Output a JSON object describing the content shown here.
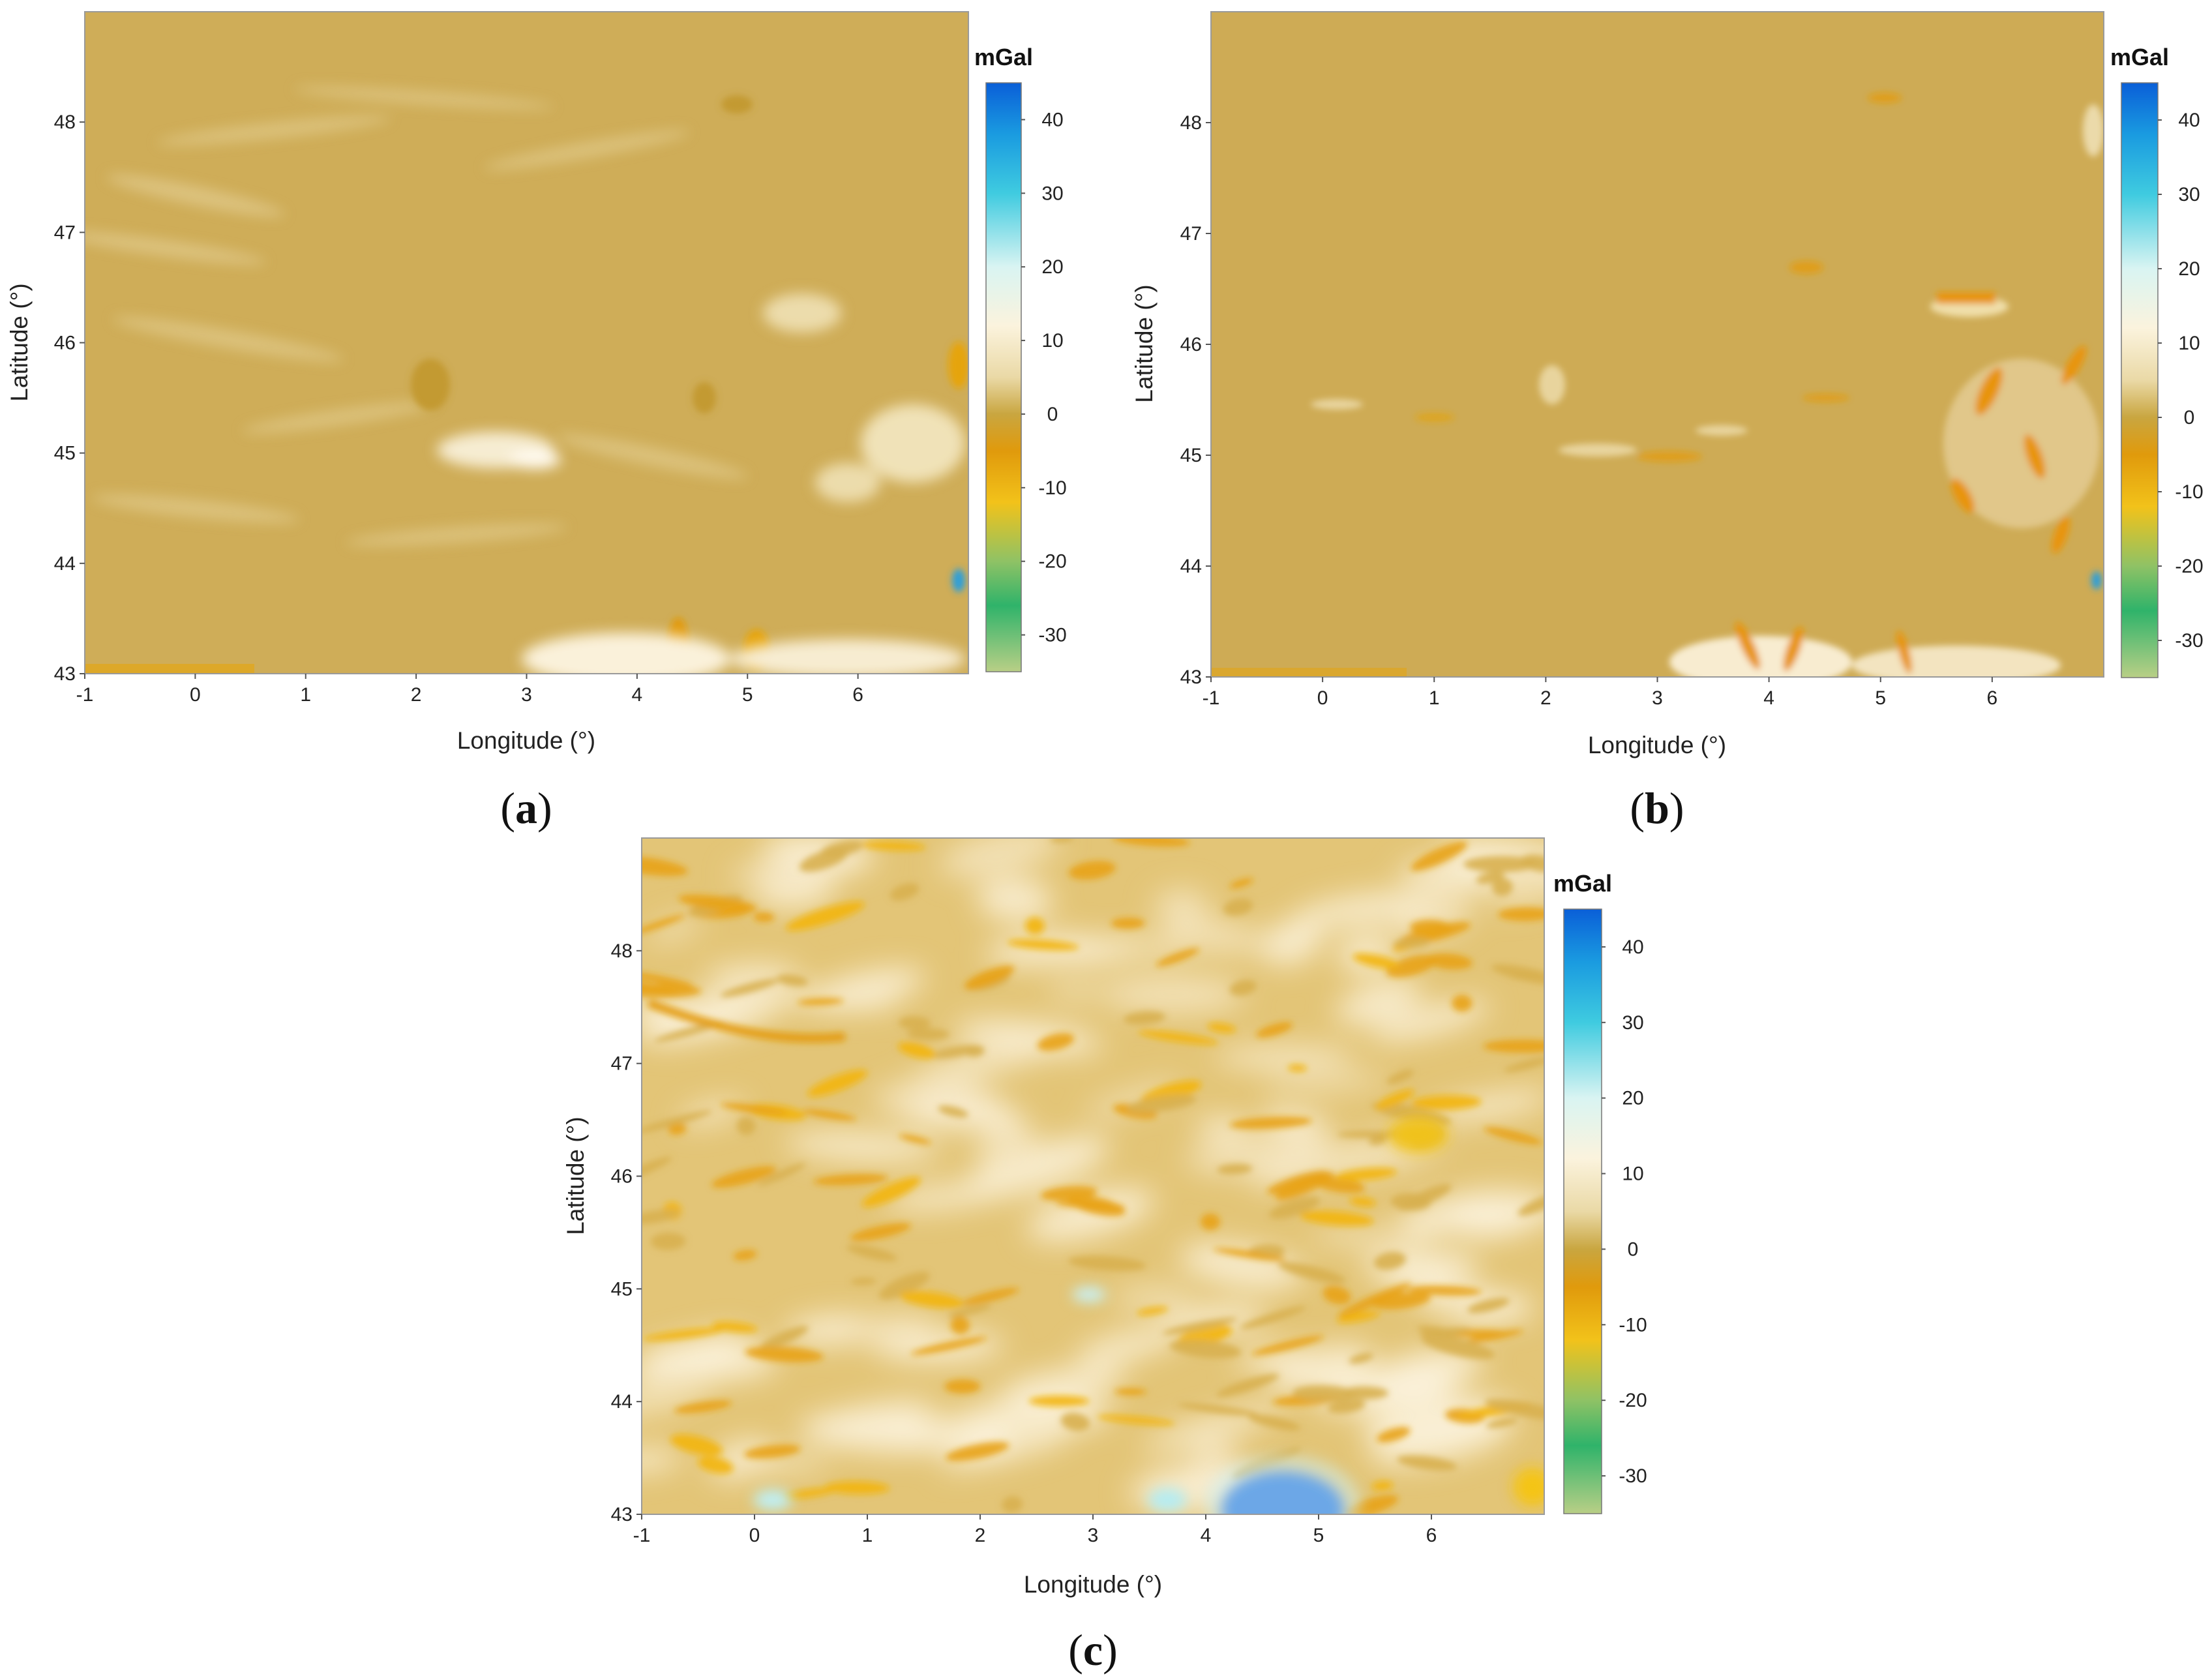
{
  "colorbar": {
    "unit": "mGal",
    "range": [
      -35,
      45
    ],
    "ticks": [
      40,
      30,
      20,
      10,
      0,
      -10,
      -20,
      -30
    ],
    "stops": [
      {
        "value": 45,
        "color": "#0a5fd8"
      },
      {
        "value": 38,
        "color": "#1a9be0"
      },
      {
        "value": 30,
        "color": "#3fcbe0"
      },
      {
        "value": 20,
        "color": "#d9f4f2"
      },
      {
        "value": 12,
        "color": "#fbf3dd"
      },
      {
        "value": 5,
        "color": "#ead9a6"
      },
      {
        "value": 0,
        "color": "#c9a640"
      },
      {
        "value": -5,
        "color": "#e09a0c"
      },
      {
        "value": -12,
        "color": "#f2c21a"
      },
      {
        "value": -20,
        "color": "#8fc265"
      },
      {
        "value": -26,
        "color": "#2fb36a"
      },
      {
        "value": -35,
        "color": "#b9cf86"
      }
    ]
  },
  "axes": {
    "xlabel": "Longitude (°)",
    "ylabel": "Latitude (°)",
    "xlim": [
      -1,
      7
    ],
    "ylim": [
      43,
      49
    ],
    "xticks": [
      -1,
      0,
      1,
      2,
      3,
      4,
      5,
      6
    ],
    "yticks": [
      43,
      44,
      45,
      46,
      47,
      48
    ]
  },
  "panels": [
    {
      "id": "a",
      "label_open": "(",
      "label_letter": "a",
      "label_close": ")",
      "base_color": "#cfad58"
    },
    {
      "id": "b",
      "label_open": "(",
      "label_letter": "b",
      "label_close": ")",
      "base_color": "#ceab55"
    },
    {
      "id": "c",
      "label_open": "(",
      "label_letter": "c",
      "label_close": ")",
      "base_color": "#e3c577"
    }
  ]
}
